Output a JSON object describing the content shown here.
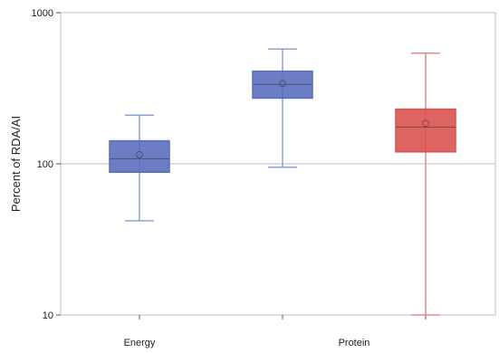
{
  "chart_data": {
    "type": "box",
    "ylabel": "Percent of RDA/AI",
    "yscale": "log",
    "ylim": [
      10,
      1000
    ],
    "yticks": [
      10,
      100,
      1000
    ],
    "ytick_labels": [
      "10",
      "100",
      "1000"
    ],
    "reference_line": 100,
    "groups": [
      "Energy",
      "Protein"
    ],
    "boxes": [
      {
        "group": "Energy",
        "color": "#5b6fbf",
        "whisker_low": 42,
        "q1": 88,
        "median": 108,
        "q3": 142,
        "whisker_high": 210,
        "mean": 115
      },
      {
        "group": "Protein",
        "color": "#5b6fbf",
        "whisker_low": 95,
        "q1": 272,
        "median": 335,
        "q3": 410,
        "whisker_high": 575,
        "mean": 340
      },
      {
        "group": "Protein",
        "color": "#d9534f",
        "whisker_low": 10,
        "q1": 120,
        "median": 175,
        "q3": 230,
        "whisker_high": 540,
        "mean": 185
      }
    ],
    "grid": false,
    "legend": "none"
  }
}
